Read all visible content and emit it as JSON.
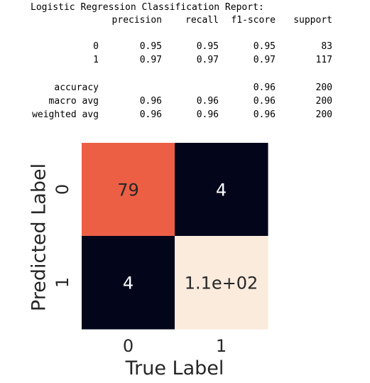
{
  "report": {
    "title": "Logistic Regression Classification Report:",
    "headers": [
      "precision",
      "recall",
      "f1-score",
      "support"
    ],
    "class_rows": [
      {
        "label": "0",
        "precision": "0.95",
        "recall": "0.95",
        "f1": "0.95",
        "support": "83"
      },
      {
        "label": "1",
        "precision": "0.97",
        "recall": "0.97",
        "f1": "0.97",
        "support": "117"
      }
    ],
    "summary_rows": [
      {
        "label": "accuracy",
        "precision": "",
        "recall": "",
        "f1": "0.96",
        "support": "200"
      },
      {
        "label": "macro avg",
        "precision": "0.96",
        "recall": "0.96",
        "f1": "0.96",
        "support": "200"
      },
      {
        "label": "weighted avg",
        "precision": "0.96",
        "recall": "0.96",
        "f1": "0.96",
        "support": "200"
      }
    ]
  },
  "chart_data": {
    "type": "heatmap",
    "xlabel": "True Label",
    "ylabel": "Predicted Label",
    "x_ticks": [
      "0",
      "1"
    ],
    "y_ticks": [
      "0",
      "1"
    ],
    "values": [
      [
        79,
        4
      ],
      [
        4,
        113
      ]
    ],
    "annotations": [
      [
        "79",
        "4"
      ],
      [
        "4",
        "1.1e+02"
      ]
    ],
    "colors": {
      "low": "#03051a",
      "high": "#faebdd",
      "mid_79": "#f0714e"
    },
    "colorbar": false
  }
}
